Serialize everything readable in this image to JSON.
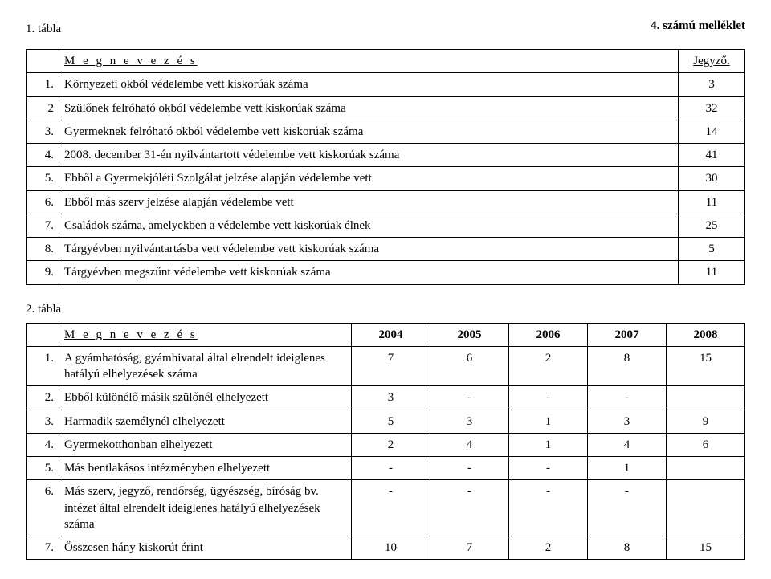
{
  "attachment_label": "4. számú melléklet",
  "table1": {
    "caption": "1.  tábla",
    "header_label": "M e g n e v e z é s",
    "header_right": "Jegyző.",
    "rows": [
      {
        "n": "1.",
        "text": "Környezeti okból védelembe vett kiskorúak száma",
        "val": "3"
      },
      {
        "n": "2",
        "text": "Szülőnek felróható okból védelembe vett kiskorúak száma",
        "val": "32"
      },
      {
        "n": "3.",
        "text": "Gyermeknek felróható okból védelembe vett kiskorúak száma",
        "val": "14"
      },
      {
        "n": "4.",
        "text": "2008. december 31-én nyilvántartott védelembe vett kiskorúak száma",
        "val": "41"
      },
      {
        "n": "5.",
        "text": "Ebből a Gyermekjóléti Szolgálat jelzése alapján védelembe vett",
        "val": "30"
      },
      {
        "n": "6.",
        "text": "Ebből más szerv jelzése alapján védelembe vett",
        "val": "11"
      },
      {
        "n": "7.",
        "text": "Családok száma, amelyekben a védelembe vett kiskorúak élnek",
        "val": "25"
      },
      {
        "n": "8.",
        "text": "Tárgyévben nyilvántartásba vett védelembe vett kiskorúak száma",
        "val": "5"
      },
      {
        "n": "9.",
        "text": "Tárgyévben megszűnt védelembe vett kiskorúak száma",
        "val": "11"
      }
    ]
  },
  "table2": {
    "caption": "2.  tábla",
    "header_label": "M e g  n e v e z é s",
    "years": [
      "2004",
      "2005",
      "2006",
      "2007",
      "2008"
    ],
    "rows": [
      {
        "n": "1.",
        "text": "A gyámhatóság, gyámhivatal által elrendelt ideiglenes hatályú elhelyezések száma",
        "vals": [
          "7",
          "6",
          "2",
          "8",
          "15"
        ]
      },
      {
        "n": "2.",
        "text": "Ebből különélő másik szülőnél elhelyezett",
        "vals": [
          "3",
          "-",
          "-",
          "-",
          ""
        ]
      },
      {
        "n": "3.",
        "text": "Harmadik személynél elhelyezett",
        "vals": [
          "5",
          "3",
          "1",
          "3",
          "9"
        ]
      },
      {
        "n": "4.",
        "text": "Gyermekotthonban elhelyezett",
        "vals": [
          "2",
          "4",
          "1",
          "4",
          "6"
        ]
      },
      {
        "n": "5.",
        "text": "Más bentlakásos intézményben elhelyezett",
        "vals": [
          "-",
          "-",
          "-",
          "1",
          ""
        ]
      },
      {
        "n": "6.",
        "text": "Más szerv, jegyző, rendőrség, ügyészség, bíróság bv. intézet által elrendelt ideiglenes hatályú elhelyezések száma",
        "vals": [
          "-",
          "-",
          "-",
          "-",
          ""
        ]
      },
      {
        "n": "7.",
        "text": "Összesen hány kiskorút érint",
        "vals": [
          "10",
          "7",
          "2",
          "8",
          "15"
        ]
      }
    ]
  }
}
